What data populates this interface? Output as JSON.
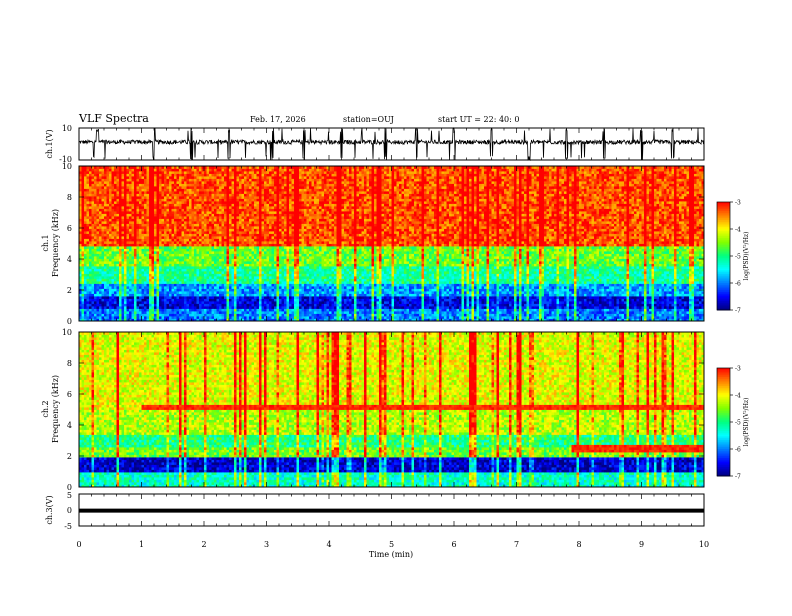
{
  "header": {
    "title": "VLF Spectra",
    "date": "Feb. 17, 2026",
    "station": "station=OUJ",
    "start": "start  UT =   22: 40: 0"
  },
  "colors": {
    "spectrum_scale": [
      "#000080",
      "#0000ff",
      "#0080ff",
      "#00ffff",
      "#00ff80",
      "#80ff00",
      "#ffff00",
      "#ff8000",
      "#ff0000"
    ]
  },
  "chart_data": [
    {
      "id": "ch1-waveform",
      "type": "line",
      "ylabel": "ch.1(V)",
      "ylim": [
        -10,
        10
      ],
      "y_ticks": [
        "10",
        "-10"
      ],
      "xlim": [
        0,
        10
      ],
      "baseline_v": 1.2,
      "burst_times_min": [
        0.3,
        1.2,
        1.8,
        2.4,
        3.1,
        3.6,
        4.2,
        4.9,
        5.4,
        6.0,
        6.6,
        7.2,
        7.8,
        8.4,
        9.0,
        9.5
      ]
    },
    {
      "id": "ch1-spectrogram",
      "type": "heatmap",
      "ylabel": "ch.1",
      "ylabel2": "Frequency (kHz)",
      "ylim": [
        0,
        10
      ],
      "y_ticks": [
        "0",
        "2",
        "4",
        "6",
        "8",
        "10"
      ],
      "xlim": [
        0,
        10
      ],
      "colorbar": {
        "label": "log(PSD)(V²/Hz)",
        "range": [
          -7,
          -3
        ],
        "ticks": [
          "-3",
          "-4",
          "-5",
          "-6",
          "-7"
        ]
      },
      "band_levels": [
        {
          "f_min": 0,
          "f_max": 0.8,
          "log_psd": -6.0
        },
        {
          "f_min": 0.8,
          "f_max": 1.6,
          "log_psd": -6.6
        },
        {
          "f_min": 1.6,
          "f_max": 2.4,
          "log_psd": -5.9
        },
        {
          "f_min": 2.4,
          "f_max": 3.5,
          "log_psd": -5.1
        },
        {
          "f_min": 3.5,
          "f_max": 4.8,
          "log_psd": -4.6
        },
        {
          "f_min": 4.8,
          "f_max": 10,
          "log_psd": -3.3
        }
      ]
    },
    {
      "id": "ch2-spectrogram",
      "type": "heatmap",
      "ylabel": "ch.2",
      "ylabel2": "Frequency (kHz)",
      "ylim": [
        0,
        10
      ],
      "y_ticks": [
        "0",
        "2",
        "4",
        "6",
        "8",
        "10"
      ],
      "xlim": [
        0,
        10
      ],
      "colorbar": {
        "label": "log(PSD)(V²/Hz)",
        "range": [
          -7,
          -3
        ],
        "ticks": [
          "-3",
          "-4",
          "-5",
          "-6",
          "-7"
        ]
      },
      "band_levels": [
        {
          "f_min": 0,
          "f_max": 1.0,
          "log_psd": -5.3
        },
        {
          "f_min": 1.0,
          "f_max": 2.0,
          "log_psd": -6.7
        },
        {
          "f_min": 2.0,
          "f_max": 2.6,
          "log_psd": -4.6
        },
        {
          "f_min": 2.6,
          "f_max": 3.4,
          "log_psd": -5.0
        },
        {
          "f_min": 3.4,
          "f_max": 5.0,
          "log_psd": -4.3
        },
        {
          "f_min": 5.0,
          "f_max": 10,
          "log_psd": -4.1
        }
      ],
      "emission_lines": [
        {
          "f": 5.2,
          "t_start": 1.0,
          "t_end": 10
        },
        {
          "f": 2.5,
          "t_start": 7.9,
          "t_end": 10
        }
      ]
    },
    {
      "id": "ch3-waveform",
      "type": "line",
      "ylabel": "ch.3(V)",
      "ylim": [
        -5,
        5
      ],
      "y_ticks": [
        "5",
        "0",
        "-5"
      ],
      "xlim": [
        0,
        10
      ],
      "x_ticks": [
        "0",
        "1",
        "2",
        "3",
        "4",
        "5",
        "6",
        "7",
        "8",
        "9",
        "10"
      ],
      "xlabel": "Time (min)",
      "constant_v": -0.2
    }
  ]
}
